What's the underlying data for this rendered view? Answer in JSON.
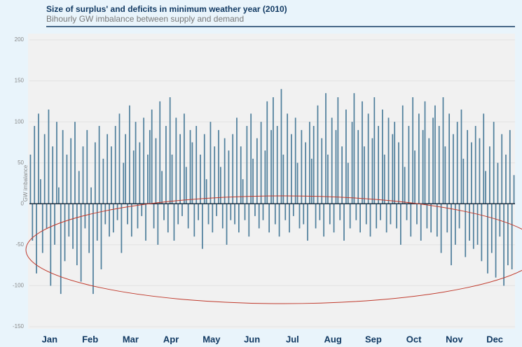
{
  "chart_data": {
    "type": "bar",
    "title": "Size of surplus' and deficits in minimum weather year (2010)",
    "subtitle": "Bihourly GW imbalance between supply and demand",
    "y_label": "GW imbalance",
    "months": [
      "Jan",
      "Feb",
      "Mar",
      "Apr",
      "May",
      "Jun",
      "Jul",
      "Aug",
      "Sep",
      "Oct",
      "Nov",
      "Dec"
    ],
    "color": "#4f7f9c",
    "ylim": [
      -150,
      200
    ],
    "yticks": [
      -150,
      -100,
      -50,
      0,
      50,
      100,
      150,
      200
    ],
    "grid": true,
    "values": [
      60,
      -45,
      95,
      -85,
      110,
      30,
      -60,
      85,
      -30,
      115,
      -100,
      70,
      -50,
      100,
      20,
      -110,
      90,
      -70,
      60,
      -40,
      80,
      -55,
      100,
      -75,
      40,
      -95,
      70,
      -30,
      90,
      -60,
      20,
      -110,
      75,
      -45,
      95,
      -80,
      55,
      -25,
      85,
      -40,
      70,
      -35,
      95,
      -20,
      110,
      -60,
      50,
      85,
      -25,
      120,
      -40,
      65,
      100,
      -30,
      75,
      -15,
      105,
      -45,
      60,
      90,
      115,
      -30,
      80,
      -50,
      125,
      40,
      -20,
      95,
      -35,
      130,
      60,
      -45,
      105,
      -25,
      85,
      -15,
      110,
      45,
      -30,
      90,
      75,
      -40,
      95,
      -20,
      60,
      -55,
      85,
      30,
      -25,
      100,
      -35,
      70,
      -15,
      90,
      45,
      -30,
      80,
      -50,
      65,
      -20,
      85,
      -25,
      105,
      -35,
      70,
      30,
      -20,
      95,
      -40,
      110,
      55,
      -15,
      80,
      -30,
      100,
      -20,
      65,
      125,
      -35,
      90,
      130,
      -25,
      95,
      -40,
      140,
      60,
      -20,
      110,
      -35,
      85,
      -15,
      105,
      50,
      -30,
      90,
      -25,
      75,
      -45,
      100,
      55,
      95,
      -30,
      120,
      -20,
      80,
      -40,
      135,
      60,
      -25,
      105,
      -35,
      90,
      130,
      -20,
      70,
      -45,
      115,
      50,
      -30,
      100,
      135,
      -20,
      90,
      -35,
      125,
      70,
      -25,
      110,
      -40,
      80,
      130,
      -30,
      95,
      -20,
      115,
      60,
      -35,
      105,
      -25,
      85,
      100,
      -30,
      75,
      -50,
      120,
      45,
      -20,
      95,
      -40,
      130,
      65,
      -25,
      110,
      -45,
      90,
      125,
      -30,
      80,
      -35,
      105,
      120,
      -40,
      95,
      -60,
      130,
      70,
      -35,
      110,
      -75,
      85,
      -50,
      100,
      -30,
      115,
      55,
      -65,
      90,
      -45,
      75,
      -55,
      95,
      -50,
      80,
      -70,
      110,
      40,
      -85,
      70,
      -60,
      100,
      -90,
      50,
      -40,
      85,
      -100,
      60,
      -75,
      90,
      -80,
      35
    ]
  }
}
